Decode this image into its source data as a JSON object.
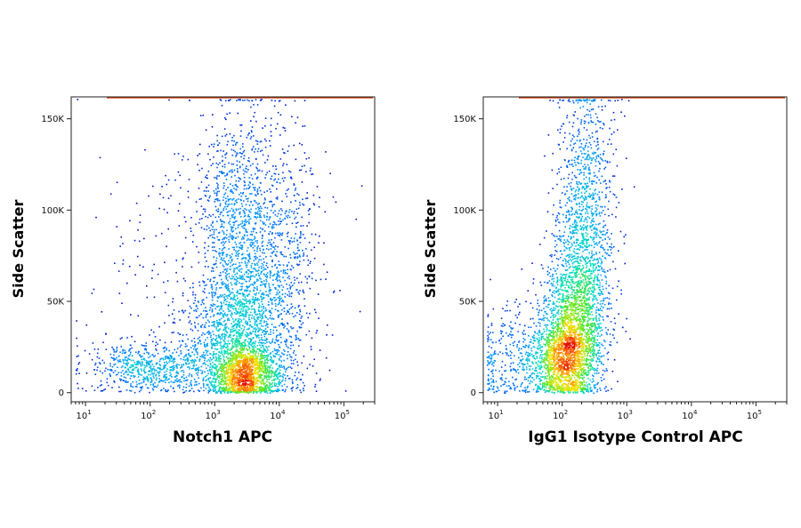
{
  "chart_data": [
    {
      "type": "scatter",
      "style": "density",
      "xlabel": "Notch1 APC",
      "ylabel": "Side Scatter",
      "xscale": "log",
      "xlim": [
        6,
        300000
      ],
      "ylim": [
        -5000,
        162000
      ],
      "xticks": [
        {
          "value": 10,
          "base": "10",
          "exp": "1"
        },
        {
          "value": 100,
          "base": "10",
          "exp": "2"
        },
        {
          "value": 1000,
          "base": "10",
          "exp": "3"
        },
        {
          "value": 10000,
          "base": "10",
          "exp": "4"
        },
        {
          "value": 100000,
          "base": "10",
          "exp": "5"
        }
      ],
      "yticks": [
        {
          "value": 0,
          "label": "0"
        },
        {
          "value": 50000,
          "label": "50K"
        },
        {
          "value": 100000,
          "label": "100K"
        },
        {
          "value": 150000,
          "label": "150K"
        }
      ],
      "clusters": [
        {
          "x_log10": 3.45,
          "y": 10000,
          "sx": 0.28,
          "sy": 8000,
          "weight": 0.26
        },
        {
          "x_log10": 3.35,
          "y": 32000,
          "sx": 0.4,
          "sy": 18000,
          "weight": 0.22
        },
        {
          "x_log10": 3.4,
          "y": 85000,
          "sx": 0.32,
          "sy": 36000,
          "weight": 0.22
        },
        {
          "x_log10": 4.1,
          "y": 70000,
          "sx": 0.28,
          "sy": 38000,
          "weight": 0.1
        },
        {
          "x_log10": 2.0,
          "y": 14000,
          "sx": 0.5,
          "sy": 7000,
          "weight": 0.12
        },
        {
          "x_log10": 3.0,
          "y": 60000,
          "sx": 0.9,
          "sy": 45000,
          "weight": 0.08
        }
      ]
    },
    {
      "type": "scatter",
      "style": "density",
      "xlabel": "IgG1 Isotype Control APC",
      "ylabel": "Side Scatter",
      "xscale": "log",
      "xlim": [
        6,
        300000
      ],
      "ylim": [
        -5000,
        162000
      ],
      "xticks": [
        {
          "value": 10,
          "base": "10",
          "exp": "1"
        },
        {
          "value": 100,
          "base": "10",
          "exp": "2"
        },
        {
          "value": 1000,
          "base": "10",
          "exp": "3"
        },
        {
          "value": 10000,
          "base": "10",
          "exp": "4"
        },
        {
          "value": 100000,
          "base": "10",
          "exp": "5"
        }
      ],
      "yticks": [
        {
          "value": 0,
          "label": "0"
        },
        {
          "value": 50000,
          "label": "50K"
        },
        {
          "value": 100000,
          "label": "100K"
        },
        {
          "value": 150000,
          "label": "150K"
        }
      ],
      "clusters": [
        {
          "x_log10": 2.05,
          "y": 18000,
          "sx": 0.25,
          "sy": 12000,
          "weight": 0.35
        },
        {
          "x_log10": 2.2,
          "y": 45000,
          "sx": 0.25,
          "sy": 20000,
          "weight": 0.3
        },
        {
          "x_log10": 2.35,
          "y": 100000,
          "sx": 0.22,
          "sy": 35000,
          "weight": 0.25
        },
        {
          "x_log10": 1.3,
          "y": 20000,
          "sx": 0.35,
          "sy": 15000,
          "weight": 0.1
        }
      ]
    }
  ]
}
